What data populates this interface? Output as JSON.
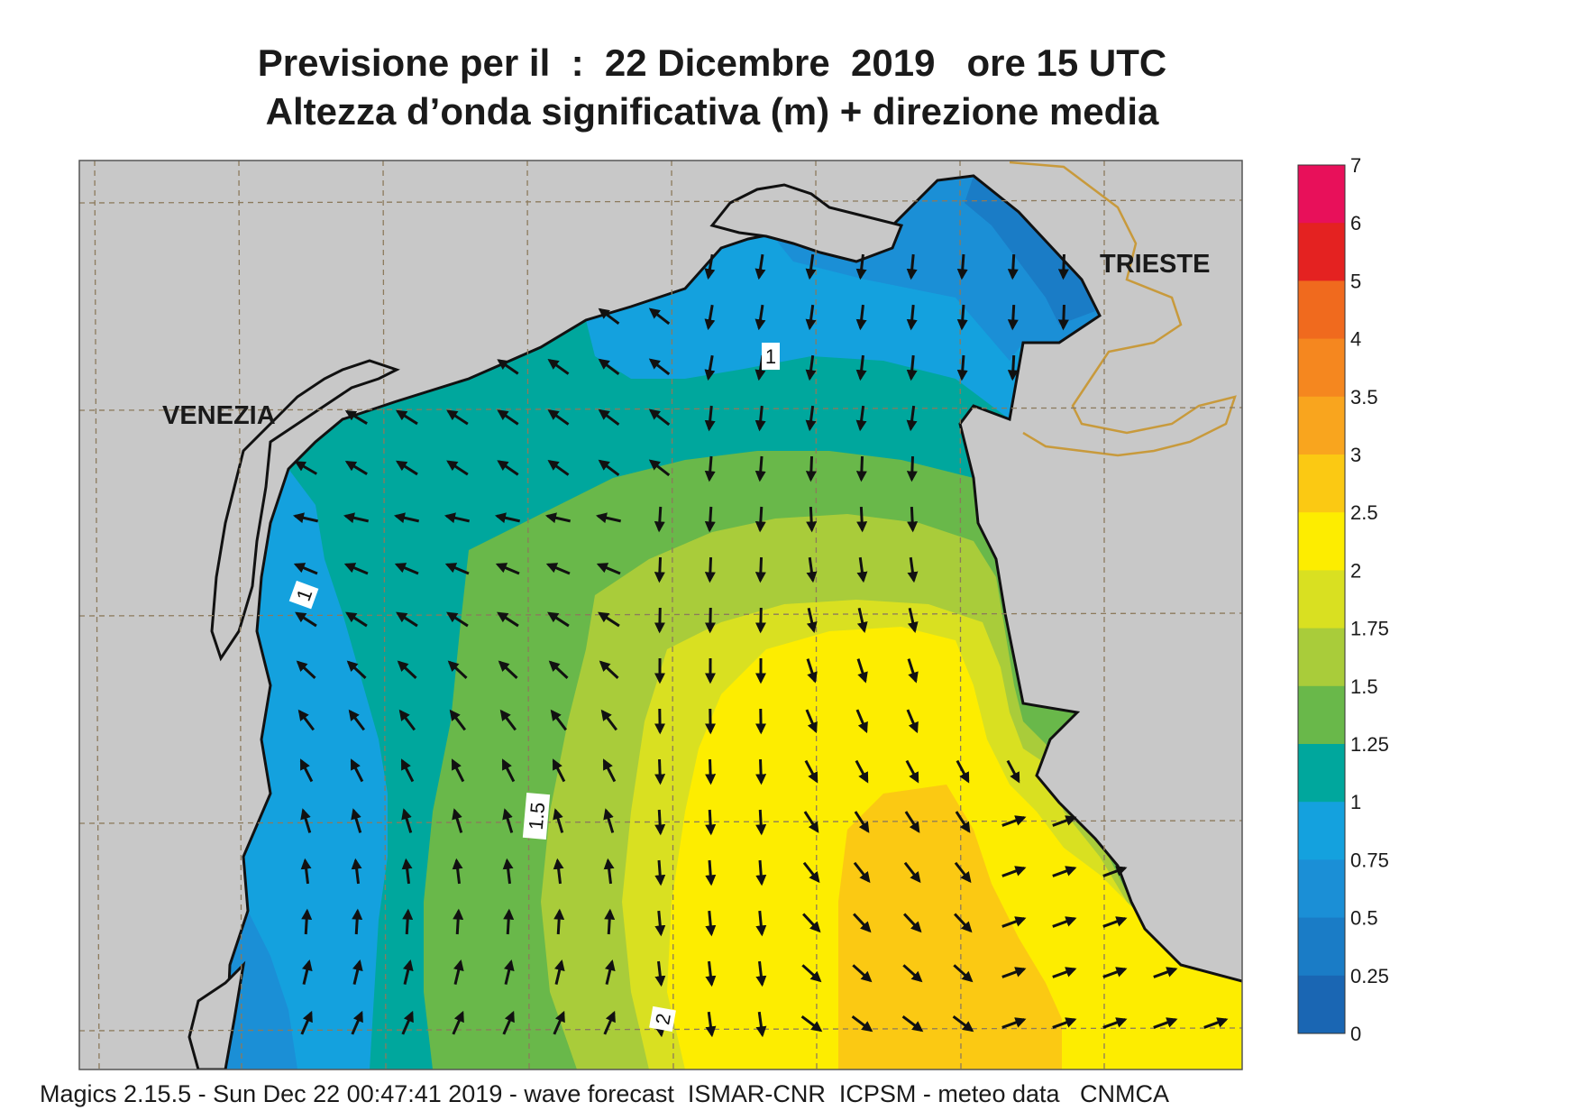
{
  "title": {
    "line1": "Previsione per il  :  22 Dicembre  2019   ore 15 UTC",
    "line2": "Altezza d’onda significativa (m) + direzione media"
  },
  "cities": [
    {
      "name": "VENEZIA"
    },
    {
      "name": "TRIESTE"
    }
  ],
  "contour_labels": [
    "1",
    "1",
    "1.5",
    "2"
  ],
  "colorbar": {
    "labels": [
      "7",
      "6",
      "5",
      "4",
      "3.5",
      "3",
      "2.5",
      "2",
      "1.75",
      "1.5",
      "1.25",
      "1",
      "0.75",
      "0.5",
      "0.25",
      "0"
    ],
    "colors": [
      "#e8105a",
      "#e42221",
      "#f06a1e",
      "#f5871f",
      "#f9a51e",
      "#fbc913",
      "#fded00",
      "#d9e021",
      "#a9cc3a",
      "#69b84a",
      "#00a79d",
      "#14a1de",
      "#1b8fd6",
      "#1a7cc6",
      "#1a66b3"
    ]
  },
  "colors": {
    "land": "#c8c8c8",
    "sea_0_25": "#1a66b3",
    "sea_0_5": "#1a7cc6",
    "sea_0_75": "#1b8fd6",
    "sea_1": "#14a1de",
    "sea_1_25": "#00a79d",
    "sea_1_5": "#69b84a",
    "sea_1_75": "#a9cc3a",
    "sea_2": "#d9e021",
    "sea_2_5": "#fded00",
    "sea_3": "#fbc913",
    "border": "#c89a3c"
  },
  "footer": "Magics 2.15.5 - Sun Dec 22 00:47:41 2019 - wave forecast  ISMAR-CNR  ICPSM - meteo data   CNMCA"
}
